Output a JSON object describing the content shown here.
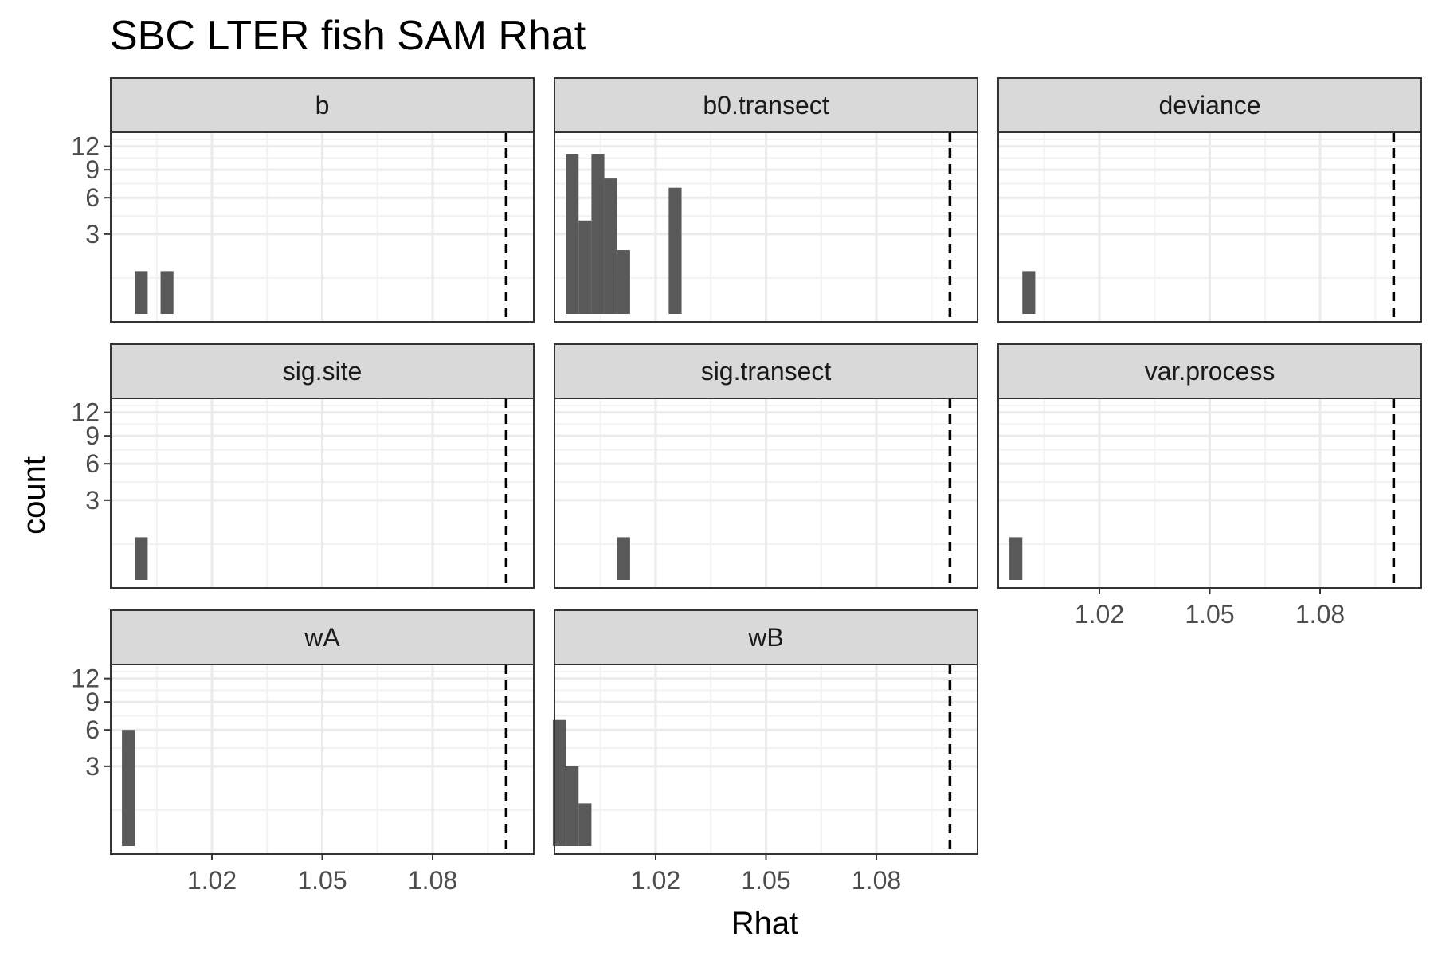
{
  "chart_data": {
    "type": "bar",
    "title": "SBC LTER fish SAM Rhat",
    "xlabel": "Rhat",
    "ylabel": "count",
    "y_scale": "sqrt",
    "ylim": [
      0,
      14
    ],
    "y_ticks": [
      3,
      6,
      9,
      12
    ],
    "xlim": [
      0.9925,
      1.1075
    ],
    "x_ticks": [
      1.02,
      1.05,
      1.08
    ],
    "x_tick_labels": [
      "1.02",
      "1.05",
      "1.08"
    ],
    "bin_width": 0.0035,
    "reference_line": {
      "x": 1.1,
      "style": "dashed"
    },
    "grid": true,
    "colors": {
      "bar": "#595959",
      "strip_fill": "#d9d9d9",
      "panel_border": "#333333",
      "grid_major": "#ebebeb",
      "grid_minor": "#f2f2f2"
    },
    "facets": [
      {
        "name": "b",
        "bins": [
          {
            "x": 1.0008,
            "count": 1
          },
          {
            "x": 1.0078,
            "count": 1
          }
        ]
      },
      {
        "name": "b0.transect",
        "bins": [
          {
            "x": 0.9973,
            "count": 11
          },
          {
            "x": 1.0008,
            "count": 4
          },
          {
            "x": 1.0043,
            "count": 11
          },
          {
            "x": 1.0078,
            "count": 8
          },
          {
            "x": 1.0113,
            "count": 2
          },
          {
            "x": 1.0253,
            "count": 7
          }
        ]
      },
      {
        "name": "deviance",
        "bins": [
          {
            "x": 1.0008,
            "count": 1
          }
        ]
      },
      {
        "name": "sig.site",
        "bins": [
          {
            "x": 1.0008,
            "count": 1
          }
        ]
      },
      {
        "name": "sig.transect",
        "bins": [
          {
            "x": 1.0113,
            "count": 1
          }
        ]
      },
      {
        "name": "var.process",
        "bins": [
          {
            "x": 0.9973,
            "count": 1
          }
        ]
      },
      {
        "name": "wA",
        "bins": [
          {
            "x": 0.9973,
            "count": 6
          }
        ]
      },
      {
        "name": "wB",
        "bins": [
          {
            "x": 0.9938,
            "count": 7
          },
          {
            "x": 0.9973,
            "count": 3
          },
          {
            "x": 1.0008,
            "count": 1
          }
        ]
      }
    ]
  }
}
